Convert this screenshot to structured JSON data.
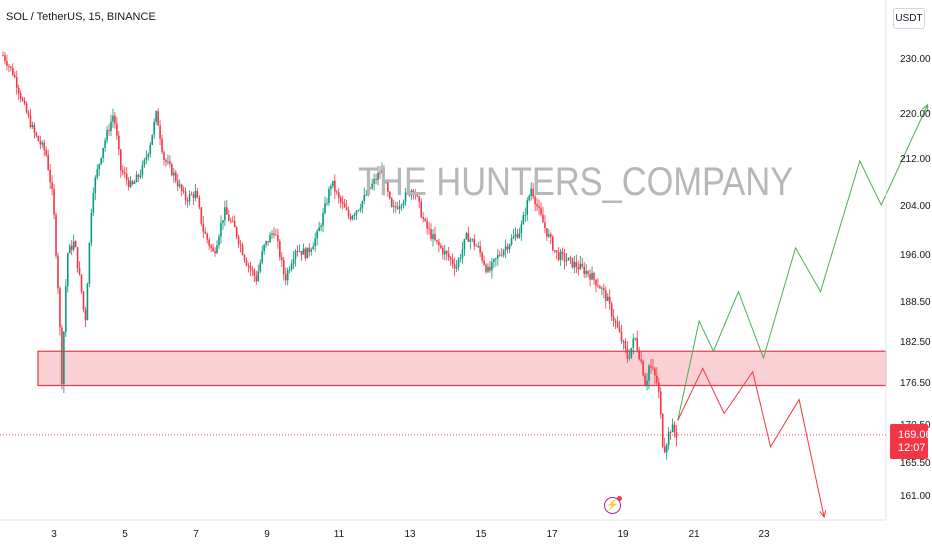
{
  "header": {
    "symbol_title": "SOL / TetherUS, 15, BINANCE",
    "currency_label": "USDT"
  },
  "watermark": "THE HUNTERS_COMPANY",
  "price_badge": {
    "price": "169.06",
    "countdown": "12:07"
  },
  "colors": {
    "up": "#089981",
    "down": "#f23645",
    "zone_fill": "#fbd0d4",
    "zone_border": "#f23645",
    "bull_path": "#4caf50",
    "bear_path": "#f23645",
    "axis_text": "#131722",
    "flash_icon": "#9c27b0"
  },
  "icons": {
    "flash": "lightning-bolt-icon"
  },
  "chart_data": {
    "type": "candlestick",
    "x_axis": {
      "labels": [
        "3",
        "5",
        "7",
        "9",
        "11",
        "13",
        "15",
        "17",
        "19",
        "21",
        "23"
      ]
    },
    "y_axis": {
      "tick_labels": [
        "230.00",
        "220.00",
        "212.00",
        "204.00",
        "196.00",
        "188.50",
        "182.50",
        "176.50",
        "170.50",
        "165.50",
        "161.00"
      ],
      "scale": "log"
    },
    "current_price": 169.06,
    "support_zone": {
      "low": 176.0,
      "high": 181.0
    },
    "price_path": [
      [
        0.0,
        230.5
      ],
      [
        0.3,
        227.0
      ],
      [
        0.6,
        221.0
      ],
      [
        0.9,
        216.0
      ],
      [
        1.2,
        213.0
      ],
      [
        1.4,
        205.0
      ],
      [
        1.55,
        190.0
      ],
      [
        1.65,
        177.0
      ],
      [
        1.8,
        196.0
      ],
      [
        2.0,
        198.0
      ],
      [
        2.2,
        190.0
      ],
      [
        2.3,
        185.0
      ],
      [
        2.5,
        206.0
      ],
      [
        2.8,
        214.0
      ],
      [
        3.1,
        220.0
      ],
      [
        3.3,
        210.0
      ],
      [
        3.6,
        207.0
      ],
      [
        3.9,
        210.0
      ],
      [
        4.1,
        214.0
      ],
      [
        4.3,
        220.0
      ],
      [
        4.5,
        212.0
      ],
      [
        4.8,
        209.0
      ],
      [
        5.1,
        205.0
      ],
      [
        5.4,
        206.0
      ],
      [
        5.6,
        200.0
      ],
      [
        5.9,
        196.0
      ],
      [
        6.2,
        203.0
      ],
      [
        6.5,
        200.0
      ],
      [
        6.8,
        195.0
      ],
      [
        7.1,
        192.0
      ],
      [
        7.3,
        197.0
      ],
      [
        7.6,
        200.0
      ],
      [
        7.9,
        192.0
      ],
      [
        8.2,
        197.0
      ],
      [
        8.5,
        196.0
      ],
      [
        8.8,
        199.0
      ],
      [
        9.0,
        203.0
      ],
      [
        9.2,
        208.0
      ],
      [
        9.4,
        205.0
      ],
      [
        9.7,
        202.0
      ],
      [
        10.0,
        204.0
      ],
      [
        10.3,
        207.0
      ],
      [
        10.6,
        210.0
      ],
      [
        10.9,
        203.0
      ],
      [
        11.2,
        205.0
      ],
      [
        11.5,
        207.0
      ],
      [
        11.8,
        201.0
      ],
      [
        12.1,
        198.0
      ],
      [
        12.4,
        196.0
      ],
      [
        12.7,
        194.0
      ],
      [
        13.0,
        199.0
      ],
      [
        13.3,
        197.0
      ],
      [
        13.6,
        193.0
      ],
      [
        13.9,
        196.0
      ],
      [
        14.2,
        198.0
      ],
      [
        14.5,
        200.0
      ],
      [
        14.8,
        207.0
      ],
      [
        15.0,
        203.0
      ],
      [
        15.2,
        200.0
      ],
      [
        15.5,
        196.0
      ],
      [
        15.8,
        195.0
      ],
      [
        16.1,
        194.0
      ],
      [
        16.4,
        193.0
      ],
      [
        16.7,
        191.0
      ],
      [
        16.9,
        189.0
      ],
      [
        17.1,
        186.0
      ],
      [
        17.3,
        183.0
      ],
      [
        17.5,
        180.0
      ],
      [
        17.7,
        183.0
      ],
      [
        17.9,
        179.0
      ],
      [
        18.0,
        176.0
      ],
      [
        18.1,
        179.0
      ],
      [
        18.2,
        178.0
      ],
      [
        18.35,
        176.0
      ],
      [
        18.5,
        167.0
      ],
      [
        18.7,
        170.0
      ],
      [
        18.9,
        169.06
      ]
    ],
    "bullish_projection": [
      [
        18.9,
        171.0
      ],
      [
        19.5,
        185.5
      ],
      [
        19.9,
        181.0
      ],
      [
        20.6,
        190.0
      ],
      [
        21.3,
        180.0
      ],
      [
        22.2,
        197.0
      ],
      [
        22.9,
        190.0
      ],
      [
        24.0,
        211.5
      ],
      [
        24.6,
        204.0
      ],
      [
        25.9,
        221.5
      ]
    ],
    "bearish_projection": [
      [
        18.9,
        171.0
      ],
      [
        19.6,
        178.5
      ],
      [
        20.2,
        172.0
      ],
      [
        21.0,
        178.0
      ],
      [
        21.5,
        167.5
      ],
      [
        22.3,
        174.0
      ],
      [
        23.0,
        158.0
      ]
    ]
  }
}
